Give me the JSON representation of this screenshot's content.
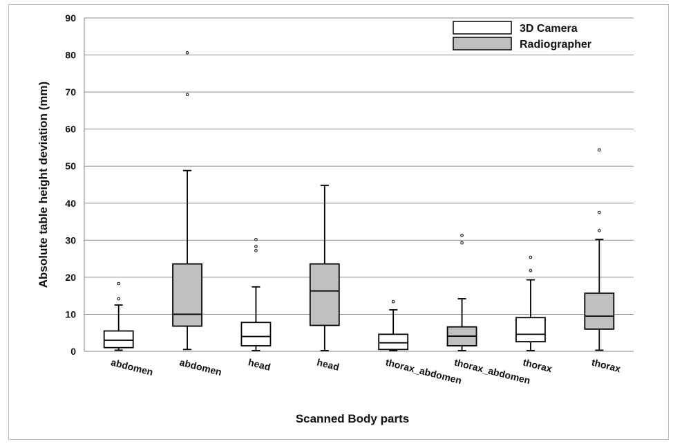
{
  "chart_data": {
    "type": "box",
    "xlabel": "Scanned Body parts",
    "ylabel": "Absolute table height deviation (mm)",
    "ylim": [
      0,
      90
    ],
    "yticks": [
      0,
      10,
      20,
      30,
      40,
      50,
      60,
      70,
      80,
      90
    ],
    "grid": "horizontal",
    "legend": {
      "position": "top-right",
      "entries": [
        {
          "name": "3D Camera",
          "color": "#ffffff"
        },
        {
          "name": "Radiographer",
          "color": "#c0c0c0"
        }
      ]
    },
    "boxes": [
      {
        "label": "abdomen",
        "series": "3D Camera",
        "color": "#ffffff",
        "min": 0.3,
        "q1": 1.0,
        "median": 3.0,
        "q3": 5.5,
        "max": 12.5,
        "outliers": [
          14.2,
          18.3
        ]
      },
      {
        "label": "abdomen",
        "series": "Radiographer",
        "color": "#c0c0c0",
        "min": 0.5,
        "q1": 6.8,
        "median": 10.0,
        "q3": 23.6,
        "max": 48.8,
        "outliers": [
          69.3,
          80.6
        ]
      },
      {
        "label": "head",
        "series": "3D Camera",
        "color": "#ffffff",
        "min": 0.2,
        "q1": 1.5,
        "median": 4.0,
        "q3": 7.8,
        "max": 17.4,
        "outliers": [
          27.2,
          28.3,
          30.2
        ]
      },
      {
        "label": "head",
        "series": "Radiographer",
        "color": "#c0c0c0",
        "min": 0.2,
        "q1": 7.0,
        "median": 16.3,
        "q3": 23.6,
        "max": 44.8,
        "outliers": []
      },
      {
        "label": "thorax_abdomen",
        "series": "3D Camera",
        "color": "#ffffff",
        "min": 0.2,
        "q1": 0.5,
        "median": 2.3,
        "q3": 4.6,
        "max": 11.2,
        "outliers": [
          13.4
        ]
      },
      {
        "label": "thorax_abdomen",
        "series": "Radiographer",
        "color": "#c0c0c0",
        "min": 0.2,
        "q1": 1.5,
        "median": 4.1,
        "q3": 6.6,
        "max": 14.2,
        "outliers": [
          29.3,
          31.3
        ]
      },
      {
        "label": "thorax",
        "series": "3D Camera",
        "color": "#ffffff",
        "min": 0.2,
        "q1": 2.6,
        "median": 4.6,
        "q3": 9.1,
        "max": 19.3,
        "outliers": [
          21.8,
          25.4
        ]
      },
      {
        "label": "thorax",
        "series": "Radiographer",
        "color": "#c0c0c0",
        "min": 0.3,
        "q1": 6.0,
        "median": 9.5,
        "q3": 15.7,
        "max": 30.2,
        "outliers": [
          32.6,
          37.5,
          54.4
        ]
      }
    ]
  }
}
